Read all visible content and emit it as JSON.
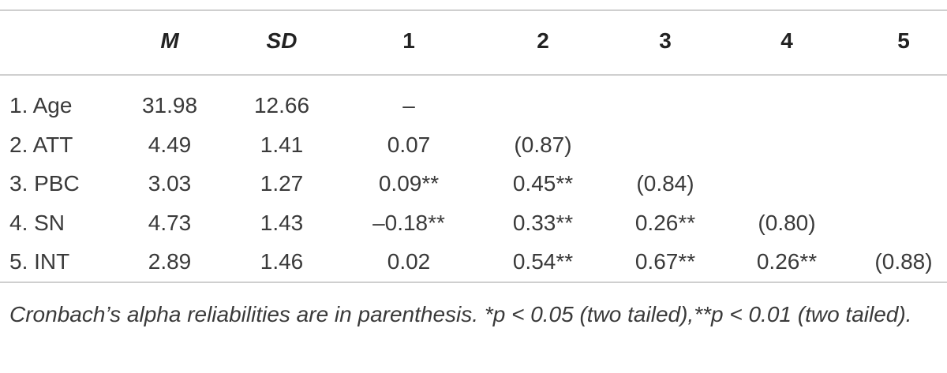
{
  "table": {
    "header": [
      "M",
      "SD",
      "1",
      "2",
      "3",
      "4",
      "5"
    ],
    "rows": [
      [
        "1. Age",
        "31.98",
        "12.66",
        "–"
      ],
      [
        "2. ATT",
        "4.49",
        "1.41",
        "0.07",
        "(0.87)"
      ],
      [
        "3. PBC",
        "3.03",
        "1.27",
        "0.09**",
        "0.45**",
        "(0.84)"
      ],
      [
        "4. SN",
        "4.73",
        "1.43",
        "–0.18**",
        "0.33**",
        "0.26**",
        "(0.80)"
      ],
      [
        "5. INT",
        "2.89",
        "1.46",
        "0.02",
        "0.54**",
        "0.67**",
        "0.26**",
        "(0.88)"
      ]
    ]
  },
  "footnote": "Cronbach’s alpha reliabilities are in parenthesis. *p < 0.05 (two tailed),**p < 0.01 (two tailed)."
}
